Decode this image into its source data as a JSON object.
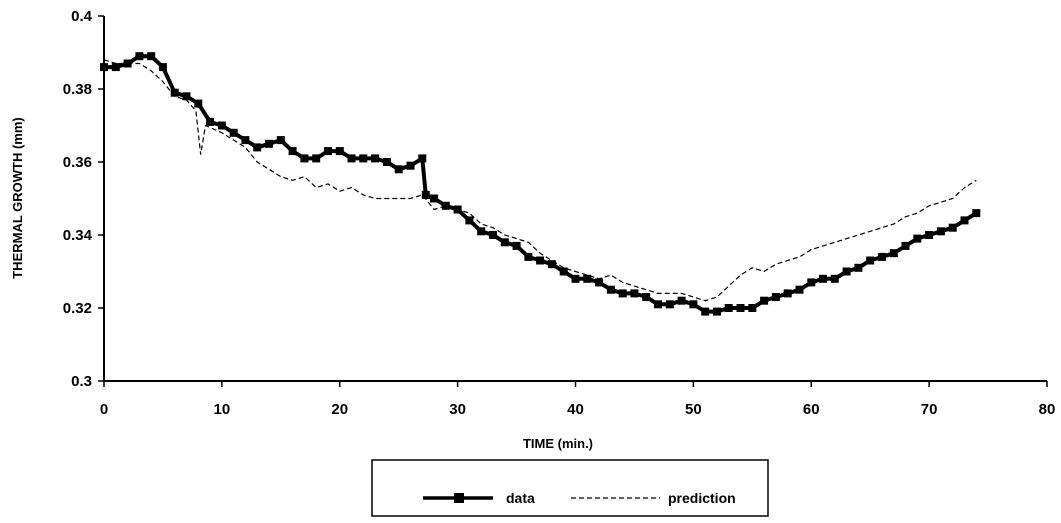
{
  "chart_data": {
    "type": "line",
    "title": "",
    "xlabel": "TIME (min.)",
    "ylabel": "THERMAL GROWTH (mm)",
    "xlim": [
      0,
      80
    ],
    "ylim": [
      0.3,
      0.4
    ],
    "x_ticks": [
      "0",
      "10",
      "20",
      "30",
      "40",
      "50",
      "60",
      "70",
      "80"
    ],
    "y_ticks": [
      "0.3",
      "0.32",
      "0.34",
      "0.36",
      "0.38",
      "0.4"
    ],
    "grid": false,
    "legend": {
      "position": "bottom",
      "boxed": true
    },
    "series": [
      {
        "name": "data",
        "style": "thick-solid-square-markers",
        "color": "#000000",
        "points": [
          [
            0,
            0.386
          ],
          [
            1,
            0.386
          ],
          [
            2,
            0.387
          ],
          [
            3,
            0.389
          ],
          [
            4,
            0.389
          ],
          [
            5,
            0.386
          ],
          [
            6,
            0.379
          ],
          [
            7,
            0.378
          ],
          [
            8,
            0.376
          ],
          [
            9,
            0.371
          ],
          [
            10,
            0.37
          ],
          [
            11,
            0.368
          ],
          [
            12,
            0.366
          ],
          [
            13,
            0.364
          ],
          [
            14,
            0.365
          ],
          [
            15,
            0.366
          ],
          [
            16,
            0.363
          ],
          [
            17,
            0.361
          ],
          [
            18,
            0.361
          ],
          [
            19,
            0.363
          ],
          [
            20,
            0.363
          ],
          [
            21,
            0.361
          ],
          [
            22,
            0.361
          ],
          [
            23,
            0.361
          ],
          [
            24,
            0.36
          ],
          [
            25,
            0.358
          ],
          [
            26,
            0.359
          ],
          [
            27,
            0.361
          ],
          [
            27.3,
            0.351
          ],
          [
            28,
            0.35
          ],
          [
            29,
            0.348
          ],
          [
            30,
            0.347
          ],
          [
            31,
            0.344
          ],
          [
            32,
            0.341
          ],
          [
            33,
            0.34
          ],
          [
            34,
            0.338
          ],
          [
            35,
            0.337
          ],
          [
            36,
            0.334
          ],
          [
            37,
            0.333
          ],
          [
            38,
            0.332
          ],
          [
            39,
            0.33
          ],
          [
            40,
            0.328
          ],
          [
            41,
            0.328
          ],
          [
            42,
            0.327
          ],
          [
            43,
            0.325
          ],
          [
            44,
            0.324
          ],
          [
            45,
            0.324
          ],
          [
            46,
            0.323
          ],
          [
            47,
            0.321
          ],
          [
            48,
            0.321
          ],
          [
            49,
            0.322
          ],
          [
            50,
            0.321
          ],
          [
            51,
            0.319
          ],
          [
            52,
            0.319
          ],
          [
            53,
            0.32
          ],
          [
            54,
            0.32
          ],
          [
            55,
            0.32
          ],
          [
            56,
            0.322
          ],
          [
            57,
            0.323
          ],
          [
            58,
            0.324
          ],
          [
            59,
            0.325
          ],
          [
            60,
            0.327
          ],
          [
            61,
            0.328
          ],
          [
            62,
            0.328
          ],
          [
            63,
            0.33
          ],
          [
            64,
            0.331
          ],
          [
            65,
            0.333
          ],
          [
            66,
            0.334
          ],
          [
            67,
            0.335
          ],
          [
            68,
            0.337
          ],
          [
            69,
            0.339
          ],
          [
            70,
            0.34
          ],
          [
            71,
            0.341
          ],
          [
            72,
            0.342
          ],
          [
            73,
            0.344
          ],
          [
            74,
            0.346
          ]
        ]
      },
      {
        "name": "prediction",
        "style": "thin-dashed",
        "color": "#000000",
        "points": [
          [
            0,
            0.388
          ],
          [
            1,
            0.387
          ],
          [
            2,
            0.387
          ],
          [
            3,
            0.387
          ],
          [
            4,
            0.385
          ],
          [
            5,
            0.382
          ],
          [
            6,
            0.378
          ],
          [
            7,
            0.377
          ],
          [
            7.8,
            0.374
          ],
          [
            8.2,
            0.362
          ],
          [
            8.6,
            0.37
          ],
          [
            10,
            0.368
          ],
          [
            11,
            0.366
          ],
          [
            12,
            0.364
          ],
          [
            13,
            0.36
          ],
          [
            14,
            0.358
          ],
          [
            15,
            0.356
          ],
          [
            16,
            0.355
          ],
          [
            17,
            0.356
          ],
          [
            18,
            0.353
          ],
          [
            19,
            0.354
          ],
          [
            20,
            0.352
          ],
          [
            21,
            0.353
          ],
          [
            22,
            0.351
          ],
          [
            23,
            0.35
          ],
          [
            24,
            0.35
          ],
          [
            25,
            0.35
          ],
          [
            26,
            0.35
          ],
          [
            27,
            0.351
          ],
          [
            27.5,
            0.349
          ],
          [
            28,
            0.347
          ],
          [
            29,
            0.348
          ],
          [
            30,
            0.347
          ],
          [
            31,
            0.346
          ],
          [
            32,
            0.343
          ],
          [
            33,
            0.342
          ],
          [
            34,
            0.34
          ],
          [
            35,
            0.339
          ],
          [
            36,
            0.338
          ],
          [
            37,
            0.335
          ],
          [
            38,
            0.333
          ],
          [
            39,
            0.331
          ],
          [
            40,
            0.33
          ],
          [
            41,
            0.329
          ],
          [
            42,
            0.328
          ],
          [
            43,
            0.329
          ],
          [
            44,
            0.327
          ],
          [
            45,
            0.326
          ],
          [
            46,
            0.325
          ],
          [
            47,
            0.324
          ],
          [
            48,
            0.324
          ],
          [
            49,
            0.324
          ],
          [
            50,
            0.323
          ],
          [
            51,
            0.322
          ],
          [
            52,
            0.323
          ],
          [
            53,
            0.326
          ],
          [
            54,
            0.329
          ],
          [
            55,
            0.331
          ],
          [
            56,
            0.33
          ],
          [
            57,
            0.332
          ],
          [
            58,
            0.333
          ],
          [
            59,
            0.334
          ],
          [
            60,
            0.336
          ],
          [
            61,
            0.337
          ],
          [
            62,
            0.338
          ],
          [
            63,
            0.339
          ],
          [
            64,
            0.34
          ],
          [
            65,
            0.341
          ],
          [
            66,
            0.342
          ],
          [
            67,
            0.343
          ],
          [
            68,
            0.345
          ],
          [
            69,
            0.346
          ],
          [
            70,
            0.348
          ],
          [
            71,
            0.349
          ],
          [
            72,
            0.35
          ],
          [
            73,
            0.353
          ],
          [
            74,
            0.355
          ]
        ]
      }
    ]
  }
}
